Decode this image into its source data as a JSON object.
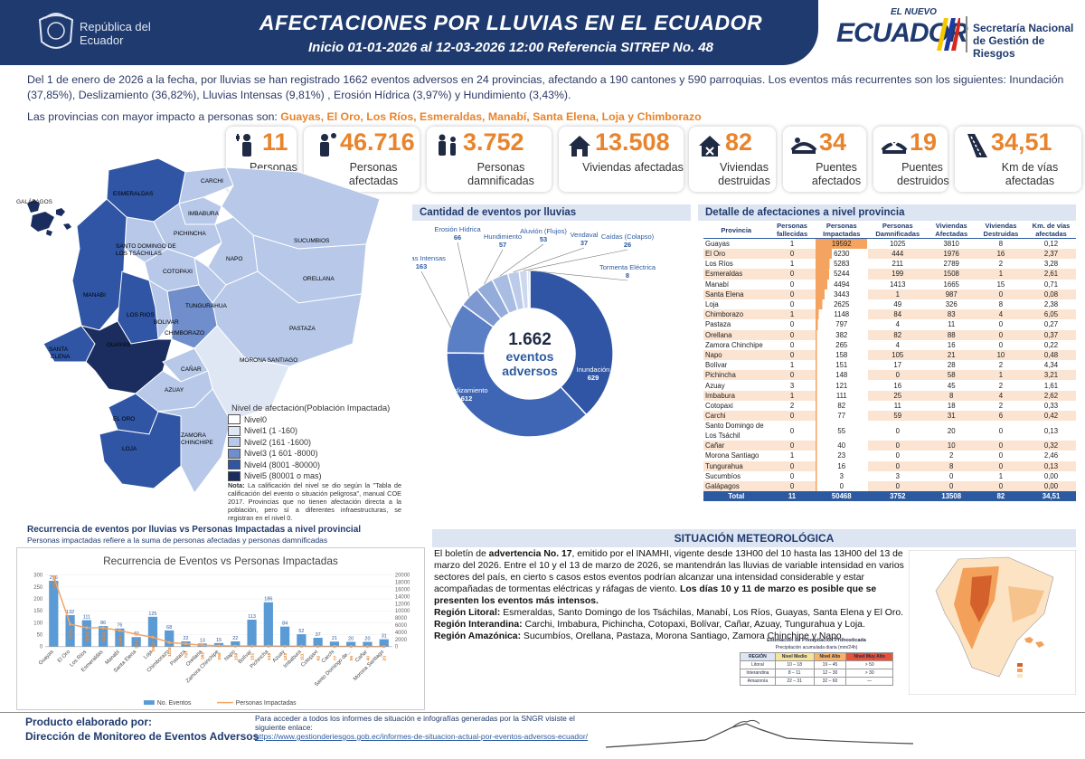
{
  "header": {
    "republica": "República del Ecuador",
    "title": "AFECTACIONES POR LLUVIAS EN EL ECUADOR",
    "subtitle": "Inicio 01-01-2026 al 12-03-2026 12:00 Referencia SITREP No. 48",
    "gov_top": "EL NUEVO",
    "gov_main": "ECUADOR",
    "sngr": "Secretaría Nacional de Gestión de Riesgos"
  },
  "intro": "Del 1 de enero de 2026 a la fecha, por lluvias se han registrado 1662 eventos adversos en 24 provincias, afectando a 190 cantones y 590 parroquias. Los eventos más recurrentes son los siguientes: Inundación (37,85%), Deslizamiento (36,82%), Lluvias Intensas (9,81%) , Erosión Hídrica (3,97%) y Hundimiento (3,43%).",
  "impacto_label": "Las provincias con mayor impacto a personas son:",
  "impacto_list": "Guayas, El Oro, Los Ríos, Esmeraldas, Manabí, Santa Elena, Loja y Chimborazo",
  "stats": [
    {
      "value": "11",
      "label": "Personas fallecidas"
    },
    {
      "value": "46.716",
      "label": "Personas afectadas"
    },
    {
      "value": "3.752",
      "label": "Personas damnificadas"
    },
    {
      "value": "13.508",
      "label": "Viviendas afectadas"
    },
    {
      "value": "82",
      "label": "Viviendas destruidas"
    },
    {
      "value": "34",
      "label": "Puentes afectados"
    },
    {
      "value": "19",
      "label": "Puentes destruidos"
    },
    {
      "value": "34,51",
      "label": "Km de vías afectadas"
    }
  ],
  "map": {
    "galapagos": "GALÁPAGOS",
    "provinces": [
      "ESMERALDAS",
      "CARCHI",
      "IMBABURA",
      "PICHINCHA",
      "SANTO DOMINGO DE LOS TSÁCHILAS",
      "SUCUMBIOS",
      "MANABI",
      "NAPO",
      "ORELLANA",
      "COTOPAXI",
      "LOS RIOS",
      "TUNGURAHUA",
      "BOLIVAR",
      "SANTA ELENA",
      "GUAYAS",
      "CHIMBORAZO",
      "PASTAZA",
      "MORONA SANTIAGO",
      "CAÑAR",
      "AZUAY",
      "EL ORO",
      "LOJA",
      "ZAMORA CHINCHIPE"
    ],
    "legend_title": "Nivel de afectación(Población Impactada)",
    "legend": [
      {
        "label": "Nivel0",
        "color": "#ffffff"
      },
      {
        "label": "Nivel1 (1 -160)",
        "color": "#dfe7f5"
      },
      {
        "label": "Nivel2 (161 -1600)",
        "color": "#b7c8e8"
      },
      {
        "label": "Nivel3 (1 601 -8000)",
        "color": "#6f8ecb"
      },
      {
        "label": "Nivel4 (8001 -80000)",
        "color": "#2f55a4"
      },
      {
        "label": "Nivel5 (80001 o mas)",
        "color": "#1a2d5e"
      }
    ],
    "nota_label": "Nota:",
    "nota": "La calificación del nivel se dio según la \"Tabla de calificación del evento o situación peligrosa\", manual COE 2017. Provincias que no tienen afectación directa a la población, pero sí a diferentes infraestructuras, se registran en el nivel 0."
  },
  "donut": {
    "title": "Cantidad de eventos por lluvias",
    "center_num": "1.662",
    "center_text": "eventos adversos",
    "slices": [
      {
        "name": "Inundación",
        "value": 629,
        "color": "#2f55a4"
      },
      {
        "name": "Deslizamiento",
        "value": 612,
        "color": "#3e66b4"
      },
      {
        "name": "Lluvias Intensas",
        "value": 163,
        "color": "#5a7fc4"
      },
      {
        "name": "Erosión Hídrica",
        "value": 66,
        "color": "#7d98d0"
      },
      {
        "name": "Hundimiento",
        "value": 57,
        "color": "#93acd9"
      },
      {
        "name": "Aluvión (Flujos)",
        "value": 53,
        "color": "#a9bde2"
      },
      {
        "name": "Vendaval",
        "value": 37,
        "color": "#bccbe9"
      },
      {
        "name": "Caídas (Colapso)",
        "value": 26,
        "color": "#cdd8ef"
      },
      {
        "name": "Tormenta Eléctrica",
        "value": 8,
        "color": "#dde5f4"
      }
    ]
  },
  "table": {
    "title": "Detalle de afectaciones a nivel provincia",
    "headers": [
      "Provincia",
      "Personas fallecidas",
      "Personas Impactadas",
      "Personas Damnificadas",
      "Viviendas Afectadas",
      "Viviendas Destruidas",
      "Km. de vías afectadas"
    ],
    "rows": [
      [
        "Guayas",
        "1",
        "19592",
        "1025",
        "3810",
        "8",
        "0,12"
      ],
      [
        "El Oro",
        "0",
        "6230",
        "444",
        "1976",
        "16",
        "2,37"
      ],
      [
        "Los Ríos",
        "1",
        "5283",
        "211",
        "2789",
        "2",
        "3,28"
      ],
      [
        "Esmeraldas",
        "0",
        "5244",
        "199",
        "1508",
        "1",
        "2,61"
      ],
      [
        "Manabí",
        "0",
        "4494",
        "1413",
        "1665",
        "15",
        "0,71"
      ],
      [
        "Santa Elena",
        "0",
        "3443",
        "1",
        "987",
        "0",
        "0,08"
      ],
      [
        "Loja",
        "0",
        "2625",
        "49",
        "326",
        "8",
        "2,38"
      ],
      [
        "Chimborazo",
        "1",
        "1148",
        "84",
        "83",
        "4",
        "6,05"
      ],
      [
        "Pastaza",
        "0",
        "797",
        "4",
        "11",
        "0",
        "0,27"
      ],
      [
        "Orellana",
        "0",
        "382",
        "82",
        "88",
        "0",
        "0,37"
      ],
      [
        "Zamora Chinchipe",
        "0",
        "265",
        "4",
        "16",
        "0",
        "0,22"
      ],
      [
        "Napo",
        "0",
        "158",
        "105",
        "21",
        "10",
        "0,48"
      ],
      [
        "Bolívar",
        "1",
        "151",
        "17",
        "28",
        "2",
        "4,34"
      ],
      [
        "Pichincha",
        "0",
        "148",
        "0",
        "58",
        "1",
        "3,21"
      ],
      [
        "Azuay",
        "3",
        "121",
        "16",
        "45",
        "2",
        "1,61"
      ],
      [
        "Imbabura",
        "1",
        "111",
        "25",
        "8",
        "4",
        "2,62"
      ],
      [
        "Cotopaxi",
        "2",
        "82",
        "11",
        "18",
        "2",
        "0,33"
      ],
      [
        "Carchi",
        "0",
        "77",
        "59",
        "31",
        "6",
        "0,42"
      ],
      [
        "Santo Domingo de Los Tsáchil",
        "0",
        "55",
        "0",
        "20",
        "0",
        "0,13"
      ],
      [
        "Cañar",
        "0",
        "40",
        "0",
        "10",
        "0",
        "0,32"
      ],
      [
        "Morona Santiago",
        "1",
        "23",
        "0",
        "2",
        "0",
        "2,46"
      ],
      [
        "Tungurahua",
        "0",
        "16",
        "0",
        "8",
        "0",
        "0,13"
      ],
      [
        "Sucumbíos",
        "0",
        "3",
        "3",
        "0",
        "1",
        "0,00"
      ],
      [
        "Galápagos",
        "0",
        "0",
        "0",
        "0",
        "0",
        "0,00"
      ]
    ],
    "total": [
      "Total",
      "11",
      "50468",
      "3752",
      "13508",
      "82",
      "34,51"
    ]
  },
  "recurrence": {
    "title": "Recurrencia de eventos por lluvias vs Personas Impactadas a nivel provincial",
    "subtitle": "Personas impactadas refiere a la suma de personas afectadas y personas damnificadas"
  },
  "chart_data": {
    "type": "bar",
    "title": "Recurrencia de Eventos vs Personas Impactadas",
    "categories": [
      "Guayas",
      "El Oro",
      "Los Ríos",
      "Esmeraldas",
      "Manabí",
      "Santa Elena",
      "Loja",
      "Chimborazo",
      "Pastaza",
      "Orellana",
      "Zamora Chinchipe",
      "Napo",
      "Bolívar",
      "Pichincha",
      "Azuay",
      "Imbabura",
      "Cotopaxi",
      "Carchi",
      "Santo Domingo de...",
      "Cañar",
      "Morona Santiago"
    ],
    "series": [
      {
        "name": "No. Eventos",
        "type": "bar",
        "axis": "left",
        "color": "#5b9bd5",
        "values": [
          276,
          132,
          111,
          86,
          76,
          40,
          125,
          68,
          22,
          13,
          15,
          22,
          113,
          186,
          84,
          52,
          37,
          21,
          20,
          20,
          31
        ]
      },
      {
        "name": "Personas Impactadas",
        "type": "line",
        "axis": "right",
        "color": "#f4a460",
        "values": [
          19592,
          6230,
          5283,
          5244,
          4494,
          3443,
          2625,
          1148,
          797,
          382,
          265,
          158,
          151,
          148,
          121,
          111,
          82,
          77,
          55,
          40,
          23
        ]
      }
    ],
    "ylim_left": [
      0,
      300
    ],
    "yticks_left": [
      0,
      50,
      100,
      150,
      200,
      250,
      300
    ],
    "ylim_right": [
      0,
      20000
    ],
    "yticks_right": [
      0,
      2000,
      4000,
      6000,
      8000,
      10000,
      12000,
      14000,
      16000,
      18000,
      20000
    ],
    "legend": "bottom"
  },
  "meteo": {
    "title": "SITUACIÓN METEOROLÓGICA",
    "p1_a": "El boletín de",
    "p1_b": "advertencia No. 17",
    "p1_c": ", emitido por el INAMHI, vigente desde 13H00 del 10 hasta las 13H00 del 13 de marzo del 2026. Entre el 10 y el 13 de marzo de 2026, se mantendrán las lluvias de variable intensidad en varios sectores del país, en cierto s casos estos eventos podrían alcanzar una intensidad considerable y estar acompañadas de tormentas eléctricas y ráfagas de viento.",
    "p1_d": "Los días 10 y 11 de marzo es posible que se presenten los eventos más intensos.",
    "lit_l": "Región Litoral:",
    "lit_v": "Esmeraldas, Santo Domingo de los Tsáchilas, Manabí, Los Ríos, Guayas, Santa Elena y El Oro.",
    "int_l": "Región Interandina:",
    "int_v": "Carchi, Imbabura, Pichincha, Cotopaxi, Bolívar, Cañar, Azuay, Tungurahua y Loja.",
    "ama_l": "Región Amazónica:",
    "ama_v": "Sucumbíos, Orellana, Pastaza, Morona Santiago, Zamora Chinchipe y Napo.",
    "prec_title": "Estimación de Precipitación Pronosticada",
    "prec_sub": "Precipitación acumulada diaria (mm/24h)",
    "prec_head": [
      "REGIÓN",
      "Nivel Medio",
      "Nivel Alto",
      "Nivel Muy Alto"
    ],
    "prec_rows": [
      [
        "Litoral",
        "10 – 18",
        "19 – 45",
        "> 50"
      ],
      [
        "Interandina",
        "8 – 11",
        "12 – 30",
        "> 30"
      ],
      [
        "Amazonía",
        "22 – 31",
        "32 – 60",
        "—"
      ]
    ]
  },
  "footer": {
    "left1": "Producto elaborado por:",
    "left2": "Dirección de Monitoreo de Eventos Adversos",
    "mid": "Para acceder a todos los informes de situación e infografías generadas por la SNGR visiste el siguiente enlace:",
    "link": "https://www.gestionderiesgos.gob.ec/informes-de-situacion-actual-por-eventos-adversos-ecuador/"
  }
}
